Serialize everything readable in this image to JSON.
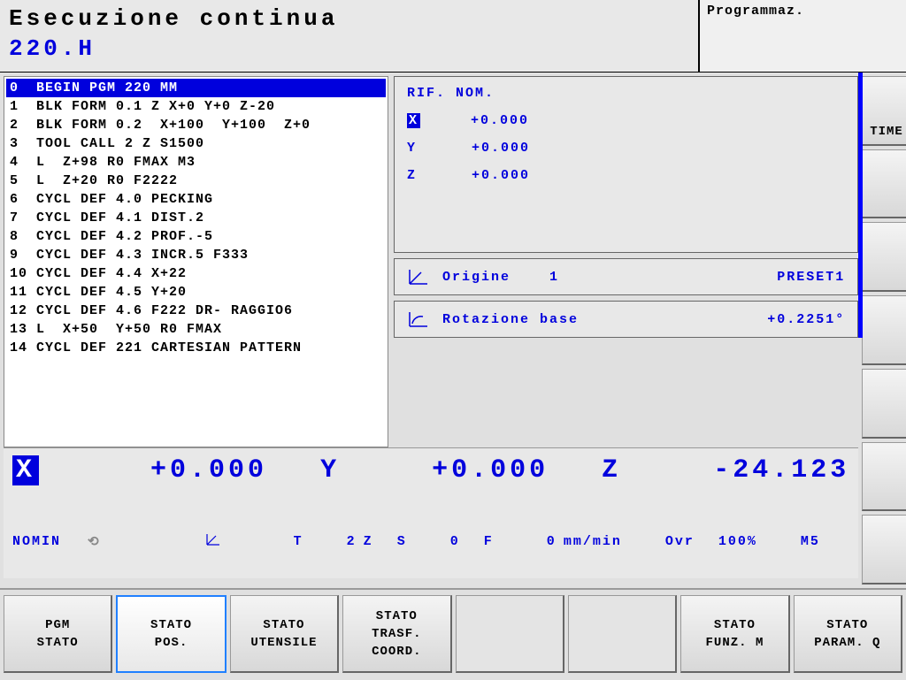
{
  "header": {
    "title": "Esecuzione continua",
    "subtitle": "220.H",
    "mode": "Programmaz."
  },
  "program": {
    "selected_index": 0,
    "lines": [
      "0  BEGIN PGM 220 MM",
      "1  BLK FORM 0.1 Z X+0 Y+0 Z-20",
      "2  BLK FORM 0.2  X+100  Y+100  Z+0",
      "3  TOOL CALL 2 Z S1500",
      "4  L  Z+98 R0 FMAX M3",
      "5  L  Z+20 R0 F2222",
      "6  CYCL DEF 4.0 PECKING",
      "7  CYCL DEF 4.1 DIST.2",
      "8  CYCL DEF 4.2 PROF.-5",
      "9  CYCL DEF 4.3 INCR.5 F333",
      "10 CYCL DEF 4.4 X+22",
      "11 CYCL DEF 4.5 Y+20",
      "12 CYCL DEF 4.6 F222 DR- RAGGIO6",
      "13 L  X+50  Y+50 R0 FMAX",
      "14 CYCL DEF 221 CARTESIAN PATTERN"
    ]
  },
  "nominal": {
    "title": "RIF. NOM.",
    "axes": [
      {
        "name": "X",
        "value": "+0.000",
        "inverted": true
      },
      {
        "name": "Y",
        "value": "+0.000",
        "inverted": false
      },
      {
        "name": "Z",
        "value": "+0.000",
        "inverted": false
      }
    ]
  },
  "origin": {
    "label": "Origine",
    "number": "1",
    "preset": "PRESET1"
  },
  "rotation": {
    "label": "Rotazione base",
    "value": "+0.2251°"
  },
  "position": {
    "x_label": "X",
    "x_val": "+0.000",
    "y_label": "Y",
    "y_val": "+0.000",
    "z_label": "Z",
    "z_val": "-24.123"
  },
  "status": {
    "mode": "NOMIN",
    "t_label": "T",
    "t_val": "2",
    "z_label": "Z",
    "s_label": "S",
    "s_val": "0",
    "f_label": "F",
    "f_val": "0",
    "f_unit": "mm/min",
    "ovr_label": "Ovr",
    "ovr_val": "100%",
    "m_val": "M5"
  },
  "side_buttons": [
    {
      "label": "TIME"
    },
    {
      "label": ""
    },
    {
      "label": ""
    },
    {
      "label": ""
    },
    {
      "label": ""
    },
    {
      "label": ""
    },
    {
      "label": ""
    }
  ],
  "softkeys": [
    {
      "line1": "PGM",
      "line2": "STATO",
      "active": false
    },
    {
      "line1": "STATO",
      "line2": "POS.",
      "active": true
    },
    {
      "line1": "STATO",
      "line2": "UTENSILE",
      "active": false
    },
    {
      "line1": "STATO",
      "line2": "TRASF.",
      "line3": "COORD.",
      "active": false
    },
    {
      "line1": "",
      "line2": "",
      "empty": true
    },
    {
      "line1": "",
      "line2": "",
      "empty": true
    },
    {
      "line1": "STATO",
      "line2": "FUNZ. M",
      "active": false
    },
    {
      "line1": "STATO",
      "line2": "PARAM. Q",
      "active": false
    }
  ],
  "colors": {
    "accent": "#0000dd",
    "bg": "#e0e0e0",
    "panel": "#e8e8e8"
  }
}
